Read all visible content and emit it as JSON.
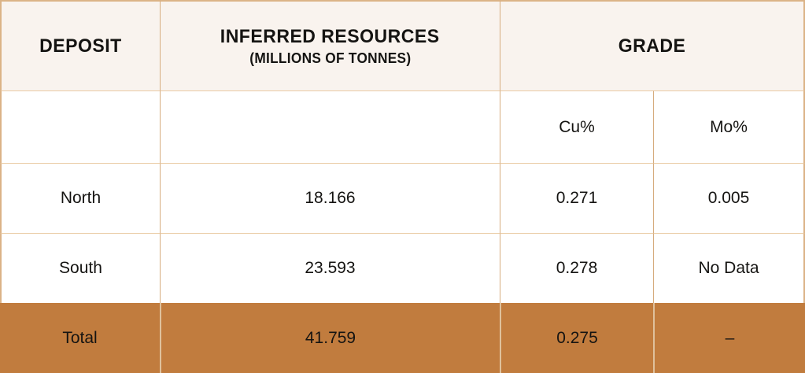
{
  "table": {
    "header": {
      "deposit": "DEPOSIT",
      "inferred_title": "INFERRED RESOURCES",
      "inferred_subtitle": "(MILLIONS OF TONNES)",
      "grade": "GRADE"
    },
    "subheader": {
      "cu": "Cu%",
      "mo": "Mo%"
    },
    "rows": [
      {
        "deposit": "North",
        "resources": "18.166",
        "cu": "0.271",
        "mo": "0.005"
      },
      {
        "deposit": "South",
        "resources": "23.593",
        "cu": "0.278",
        "mo": "No Data"
      }
    ],
    "total": {
      "deposit": "Total",
      "resources": "41.759",
      "cu": "0.275",
      "mo": "–"
    }
  },
  "colors": {
    "header_bg": "#F9F3EE",
    "row_bg": "#FFFFFF",
    "total_bg": "#C17C3E",
    "text": "#151412",
    "border_vertical": "#D6AC7E",
    "border_horizontal": "#EACBA4",
    "border_outer": "#DBB387",
    "total_divider": "#DFC19C"
  }
}
